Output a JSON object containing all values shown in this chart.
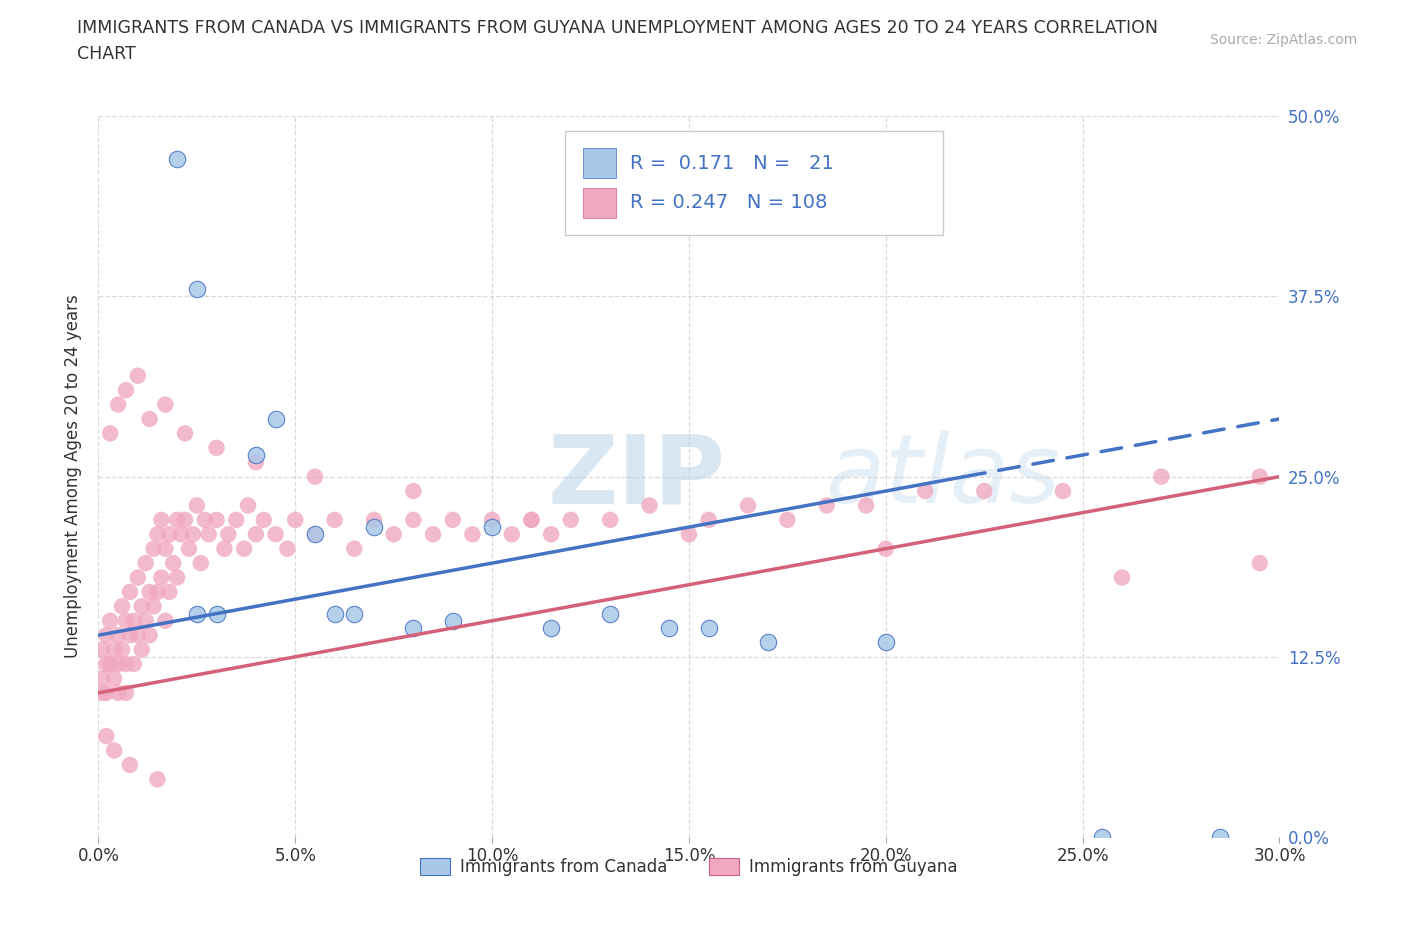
{
  "title_line1": "IMMIGRANTS FROM CANADA VS IMMIGRANTS FROM GUYANA UNEMPLOYMENT AMONG AGES 20 TO 24 YEARS CORRELATION",
  "title_line2": "CHART",
  "source": "Source: ZipAtlas.com",
  "ylabel": "Unemployment Among Ages 20 to 24 years",
  "xlim": [
    0.0,
    0.3
  ],
  "ylim": [
    0.0,
    0.5
  ],
  "xticks": [
    0.0,
    0.05,
    0.1,
    0.15,
    0.2,
    0.25,
    0.3
  ],
  "yticks": [
    0.0,
    0.125,
    0.25,
    0.375,
    0.5
  ],
  "xtick_labels": [
    "0.0%",
    "5.0%",
    "10.0%",
    "15.0%",
    "20.0%",
    "25.0%",
    "30.0%"
  ],
  "ytick_labels": [
    "0.0%",
    "12.5%",
    "25.0%",
    "37.5%",
    "50.0%"
  ],
  "canada_R": "0.171",
  "canada_N": "21",
  "guyana_R": "0.247",
  "guyana_N": "108",
  "canada_color": "#a8c8e8",
  "guyana_color": "#f0a8c0",
  "canada_line_color": "#4472c4",
  "guyana_line_color": "#d4607a",
  "legend_label_canada": "Immigrants from Canada",
  "legend_label_guyana": "Immigrants from Guyana",
  "background_color": "#ffffff",
  "watermark": "ZIPatlas",
  "grid_color": "#cccccc",
  "text_color": "#333333",
  "blue_accent": "#4472c4",
  "canada_x": [
    0.02,
    0.025,
    0.025,
    0.03,
    0.04,
    0.045,
    0.055,
    0.06,
    0.065,
    0.07,
    0.08,
    0.09,
    0.1,
    0.115,
    0.13,
    0.145,
    0.155,
    0.17,
    0.2,
    0.255,
    0.285
  ],
  "canada_y": [
    0.47,
    0.38,
    0.155,
    0.155,
    0.265,
    0.29,
    0.21,
    0.155,
    0.155,
    0.215,
    0.145,
    0.15,
    0.215,
    0.145,
    0.155,
    0.145,
    0.145,
    0.135,
    0.135,
    0.0,
    0.0
  ],
  "guyana_x": [
    0.001,
    0.001,
    0.001,
    0.002,
    0.002,
    0.002,
    0.003,
    0.003,
    0.004,
    0.004,
    0.005,
    0.005,
    0.005,
    0.006,
    0.006,
    0.007,
    0.007,
    0.007,
    0.008,
    0.008,
    0.009,
    0.009,
    0.01,
    0.01,
    0.011,
    0.011,
    0.012,
    0.012,
    0.013,
    0.013,
    0.014,
    0.014,
    0.015,
    0.015,
    0.016,
    0.016,
    0.017,
    0.017,
    0.018,
    0.018,
    0.019,
    0.02,
    0.02,
    0.021,
    0.022,
    0.023,
    0.024,
    0.025,
    0.026,
    0.027,
    0.028,
    0.03,
    0.032,
    0.033,
    0.035,
    0.037,
    0.038,
    0.04,
    0.042,
    0.045,
    0.048,
    0.05,
    0.055,
    0.06,
    0.065,
    0.07,
    0.075,
    0.08,
    0.085,
    0.09,
    0.095,
    0.1,
    0.105,
    0.11,
    0.115,
    0.12,
    0.13,
    0.14,
    0.155,
    0.165,
    0.175,
    0.185,
    0.195,
    0.21,
    0.225,
    0.245,
    0.27,
    0.295,
    0.003,
    0.005,
    0.007,
    0.01,
    0.013,
    0.017,
    0.022,
    0.03,
    0.04,
    0.055,
    0.08,
    0.11,
    0.15,
    0.2,
    0.26,
    0.295,
    0.002,
    0.004,
    0.008,
    0.015
  ],
  "guyana_y": [
    0.13,
    0.1,
    0.11,
    0.14,
    0.12,
    0.1,
    0.12,
    0.15,
    0.13,
    0.11,
    0.14,
    0.12,
    0.1,
    0.16,
    0.13,
    0.15,
    0.12,
    0.1,
    0.17,
    0.14,
    0.15,
    0.12,
    0.18,
    0.14,
    0.16,
    0.13,
    0.19,
    0.15,
    0.17,
    0.14,
    0.2,
    0.16,
    0.21,
    0.17,
    0.22,
    0.18,
    0.2,
    0.15,
    0.21,
    0.17,
    0.19,
    0.22,
    0.18,
    0.21,
    0.22,
    0.2,
    0.21,
    0.23,
    0.19,
    0.22,
    0.21,
    0.22,
    0.2,
    0.21,
    0.22,
    0.2,
    0.23,
    0.21,
    0.22,
    0.21,
    0.2,
    0.22,
    0.21,
    0.22,
    0.2,
    0.22,
    0.21,
    0.22,
    0.21,
    0.22,
    0.21,
    0.22,
    0.21,
    0.22,
    0.21,
    0.22,
    0.22,
    0.23,
    0.22,
    0.23,
    0.22,
    0.23,
    0.23,
    0.24,
    0.24,
    0.24,
    0.25,
    0.25,
    0.28,
    0.3,
    0.31,
    0.32,
    0.29,
    0.3,
    0.28,
    0.27,
    0.26,
    0.25,
    0.24,
    0.22,
    0.21,
    0.2,
    0.18,
    0.19,
    0.07,
    0.06,
    0.05,
    0.04
  ]
}
